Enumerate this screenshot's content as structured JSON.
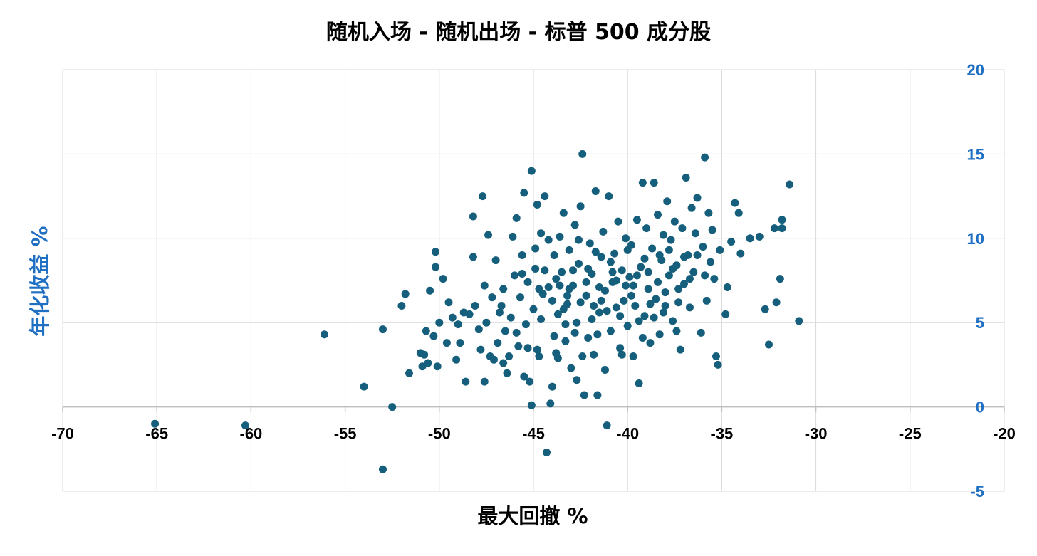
{
  "chart_data": {
    "type": "scatter",
    "title": "随机入场 - 随机出场 - 标普 500 成分股",
    "xlabel": "最大回撤 %",
    "ylabel": "年化收益 %",
    "xlim": [
      -70,
      -20
    ],
    "ylim": [
      -5,
      20
    ],
    "xticks": [
      -70,
      -65,
      -60,
      -55,
      -50,
      -45,
      -40,
      -35,
      -30,
      -25,
      -20
    ],
    "yticks": [
      -5,
      0,
      5,
      10,
      15,
      20
    ],
    "x_tick_labels": [
      "-70",
      "-65",
      "-60",
      "-55",
      "-50",
      "-45",
      "-40",
      "-35",
      "-30",
      "-25",
      "-20"
    ],
    "y_tick_labels": [
      "-5",
      "0",
      "5",
      "10",
      "15",
      "20"
    ],
    "y_axis_side": "right",
    "grid": true,
    "colors": {
      "marker": "#155f7c",
      "y_axis_text": "#1f6fc2",
      "grid": "#d9d9d9",
      "zero_line": "#bfbfbf"
    },
    "points": [
      [
        -65.1,
        -1.0
      ],
      [
        -60.3,
        -1.1
      ],
      [
        -56.1,
        4.3
      ],
      [
        -54.0,
        1.2
      ],
      [
        -53.0,
        4.6
      ],
      [
        -53.0,
        -3.7
      ],
      [
        -52.5,
        0.0
      ],
      [
        -52.0,
        6.0
      ],
      [
        -51.8,
        6.7
      ],
      [
        -51.6,
        2.0
      ],
      [
        -51.0,
        3.2
      ],
      [
        -50.8,
        3.1
      ],
      [
        -50.7,
        4.5
      ],
      [
        -50.6,
        2.6
      ],
      [
        -50.5,
        6.9
      ],
      [
        -50.3,
        4.2
      ],
      [
        -50.2,
        9.2
      ],
      [
        -50.2,
        8.3
      ],
      [
        -50.1,
        2.4
      ],
      [
        -50.0,
        5.0
      ],
      [
        -49.8,
        7.6
      ],
      [
        -49.6,
        3.8
      ],
      [
        -49.5,
        6.2
      ],
      [
        -49.1,
        2.8
      ],
      [
        -49.0,
        4.9
      ],
      [
        -48.7,
        5.6
      ],
      [
        -48.6,
        1.5
      ],
      [
        -48.4,
        5.5
      ],
      [
        -48.2,
        11.3
      ],
      [
        -48.2,
        8.9
      ],
      [
        -48.1,
        6.0
      ],
      [
        -47.9,
        4.6
      ],
      [
        -47.8,
        3.4
      ],
      [
        -47.7,
        12.5
      ],
      [
        -47.6,
        7.2
      ],
      [
        -47.6,
        1.5
      ],
      [
        -47.5,
        5.0
      ],
      [
        -47.4,
        10.2
      ],
      [
        -47.2,
        6.5
      ],
      [
        -47.1,
        2.8
      ],
      [
        -47.0,
        8.7
      ],
      [
        -46.9,
        3.8
      ],
      [
        -46.7,
        6.0
      ],
      [
        -46.6,
        7.0
      ],
      [
        -46.5,
        4.5
      ],
      [
        -46.4,
        2.0
      ],
      [
        -46.2,
        5.3
      ],
      [
        -46.1,
        10.1
      ],
      [
        -46.0,
        7.8
      ],
      [
        -45.9,
        11.2
      ],
      [
        -45.8,
        3.6
      ],
      [
        -45.7,
        6.5
      ],
      [
        -45.6,
        9.0
      ],
      [
        -45.5,
        12.7
      ],
      [
        -45.4,
        4.9
      ],
      [
        -45.3,
        7.4
      ],
      [
        -45.2,
        1.5
      ],
      [
        -45.1,
        14.0
      ],
      [
        -45.1,
        0.1
      ],
      [
        -45.0,
        5.8
      ],
      [
        -44.9,
        8.2
      ],
      [
        -44.8,
        12.0
      ],
      [
        -44.7,
        3.0
      ],
      [
        -44.6,
        10.3
      ],
      [
        -44.5,
        6.7
      ],
      [
        -44.4,
        12.5
      ],
      [
        -44.3,
        -2.7
      ],
      [
        -44.2,
        9.9
      ],
      [
        -44.1,
        0.2
      ],
      [
        -44.0,
        1.2
      ],
      [
        -43.9,
        4.2
      ],
      [
        -43.8,
        7.6
      ],
      [
        -43.7,
        5.5
      ],
      [
        -43.6,
        10.1
      ],
      [
        -43.5,
        8.0
      ],
      [
        -43.4,
        11.5
      ],
      [
        -43.3,
        3.9
      ],
      [
        -43.2,
        6.1
      ],
      [
        -43.1,
        9.3
      ],
      [
        -43.0,
        2.3
      ],
      [
        -42.9,
        7.2
      ],
      [
        -42.8,
        10.8
      ],
      [
        -42.7,
        5.0
      ],
      [
        -42.6,
        8.5
      ],
      [
        -42.5,
        11.9
      ],
      [
        -42.4,
        15.0
      ],
      [
        -42.3,
        0.7
      ],
      [
        -42.2,
        6.6
      ],
      [
        -42.1,
        4.1
      ],
      [
        -42.0,
        9.7
      ],
      [
        -41.9,
        7.9
      ],
      [
        -41.8,
        3.1
      ],
      [
        -41.7,
        12.8
      ],
      [
        -41.6,
        0.7
      ],
      [
        -41.5,
        5.6
      ],
      [
        -41.4,
        8.9
      ],
      [
        -41.3,
        10.4
      ],
      [
        -41.2,
        6.9
      ],
      [
        -41.1,
        -1.1
      ],
      [
        -41.0,
        12.5
      ],
      [
        -40.9,
        4.5
      ],
      [
        -40.8,
        7.4
      ],
      [
        -40.7,
        9.1
      ],
      [
        -40.6,
        5.9
      ],
      [
        -40.5,
        11.0
      ],
      [
        -40.4,
        3.5
      ],
      [
        -40.3,
        8.1
      ],
      [
        -40.2,
        6.3
      ],
      [
        -40.1,
        10.0
      ],
      [
        -40.0,
        4.8
      ],
      [
        -39.9,
        7.7
      ],
      [
        -39.8,
        9.6
      ],
      [
        -39.7,
        3.0
      ],
      [
        -39.6,
        6.0
      ],
      [
        -39.5,
        11.1
      ],
      [
        -39.4,
        1.4
      ],
      [
        -39.3,
        8.3
      ],
      [
        -39.2,
        13.3
      ],
      [
        -39.1,
        5.4
      ],
      [
        -39.0,
        10.6
      ],
      [
        -38.9,
        7.0
      ],
      [
        -38.8,
        3.8
      ],
      [
        -38.7,
        9.4
      ],
      [
        -38.6,
        13.3
      ],
      [
        -38.5,
        6.4
      ],
      [
        -38.4,
        11.4
      ],
      [
        -38.3,
        4.3
      ],
      [
        -38.2,
        8.7
      ],
      [
        -38.1,
        10.2
      ],
      [
        -38.0,
        6.0
      ],
      [
        -37.9,
        12.2
      ],
      [
        -37.8,
        7.8
      ],
      [
        -37.7,
        9.9
      ],
      [
        -37.6,
        5.1
      ],
      [
        -37.5,
        11.0
      ],
      [
        -37.4,
        8.4
      ],
      [
        -37.3,
        6.2
      ],
      [
        -37.2,
        3.4
      ],
      [
        -37.1,
        10.6
      ],
      [
        -37.0,
        7.3
      ],
      [
        -36.9,
        13.6
      ],
      [
        -36.8,
        9.0
      ],
      [
        -36.7,
        5.9
      ],
      [
        -36.6,
        11.8
      ],
      [
        -36.5,
        8.0
      ],
      [
        -36.4,
        10.3
      ],
      [
        -36.3,
        12.4
      ],
      [
        -36.1,
        4.4
      ],
      [
        -36.0,
        9.5
      ],
      [
        -35.9,
        14.8
      ],
      [
        -35.8,
        6.3
      ],
      [
        -35.7,
        11.5
      ],
      [
        -35.6,
        8.6
      ],
      [
        -35.5,
        10.5
      ],
      [
        -35.4,
        7.6
      ],
      [
        -35.3,
        3.0
      ],
      [
        -35.2,
        2.5
      ],
      [
        -35.1,
        9.3
      ],
      [
        -34.8,
        5.5
      ],
      [
        -34.7,
        7.1
      ],
      [
        -34.5,
        9.8
      ],
      [
        -34.3,
        12.1
      ],
      [
        -34.1,
        11.5
      ],
      [
        -34.0,
        9.1
      ],
      [
        -33.5,
        10.0
      ],
      [
        -33.0,
        10.1
      ],
      [
        -32.7,
        5.8
      ],
      [
        -32.5,
        3.7
      ],
      [
        -32.2,
        10.6
      ],
      [
        -32.1,
        6.2
      ],
      [
        -31.9,
        7.6
      ],
      [
        -31.8,
        11.1
      ],
      [
        -31.8,
        10.6
      ],
      [
        -31.4,
        13.2
      ],
      [
        -30.9,
        5.1
      ],
      [
        -46.8,
        5.6
      ],
      [
        -46.3,
        3.0
      ],
      [
        -45.6,
        7.9
      ],
      [
        -45.3,
        3.5
      ],
      [
        -44.9,
        9.4
      ],
      [
        -44.6,
        5.2
      ],
      [
        -44.2,
        7.1
      ],
      [
        -43.9,
        9.0
      ],
      [
        -43.7,
        2.9
      ],
      [
        -43.4,
        5.8
      ],
      [
        -43.1,
        7.0
      ],
      [
        -42.8,
        4.4
      ],
      [
        -42.6,
        9.9
      ],
      [
        -42.4,
        3.0
      ],
      [
        -42.2,
        7.4
      ],
      [
        -41.9,
        5.2
      ],
      [
        -41.7,
        9.2
      ],
      [
        -41.4,
        6.3
      ],
      [
        -41.2,
        2.2
      ],
      [
        -40.9,
        8.6
      ],
      [
        -40.6,
        7.5
      ],
      [
        -40.3,
        3.1
      ],
      [
        -40.0,
        9.3
      ],
      [
        -39.7,
        7.2
      ],
      [
        -39.4,
        5.1
      ],
      [
        -39.1,
        8.8
      ],
      [
        -38.8,
        6.1
      ],
      [
        -38.4,
        7.4
      ],
      [
        -38.1,
        5.6
      ],
      [
        -37.8,
        9.3
      ],
      [
        -37.4,
        4.5
      ],
      [
        -37.0,
        8.9
      ],
      [
        -36.7,
        7.6
      ],
      [
        -36.3,
        9.0
      ],
      [
        -35.9,
        7.8
      ],
      [
        -44.7,
        7.0
      ],
      [
        -44.4,
        8.1
      ],
      [
        -44.0,
        6.3
      ],
      [
        -43.6,
        7.2
      ],
      [
        -43.2,
        6.6
      ],
      [
        -42.9,
        8.1
      ],
      [
        -42.5,
        6.2
      ],
      [
        -42.1,
        8.2
      ],
      [
        -41.8,
        6.0
      ],
      [
        -41.5,
        7.1
      ],
      [
        -41.1,
        5.7
      ],
      [
        -40.8,
        8.0
      ],
      [
        -40.4,
        5.4
      ],
      [
        -40.1,
        7.2
      ],
      [
        -39.8,
        6.6
      ],
      [
        -39.5,
        7.8
      ],
      [
        -39.2,
        4.1
      ],
      [
        -38.9,
        8.0
      ],
      [
        -38.6,
        5.3
      ],
      [
        -38.3,
        9.0
      ],
      [
        -38.0,
        6.8
      ],
      [
        -37.6,
        8.2
      ],
      [
        -37.3,
        7.0
      ],
      [
        -47.3,
        3.0
      ],
      [
        -48.9,
        3.8
      ],
      [
        -49.3,
        5.3
      ],
      [
        -50.9,
        2.4
      ],
      [
        -46.6,
        2.6
      ],
      [
        -45.9,
        4.4
      ],
      [
        -45.5,
        1.8
      ],
      [
        -44.8,
        3.4
      ],
      [
        -43.8,
        3.2
      ],
      [
        -43.3,
        4.9
      ],
      [
        -42.7,
        1.6
      ],
      [
        -41.6,
        4.3
      ]
    ]
  }
}
